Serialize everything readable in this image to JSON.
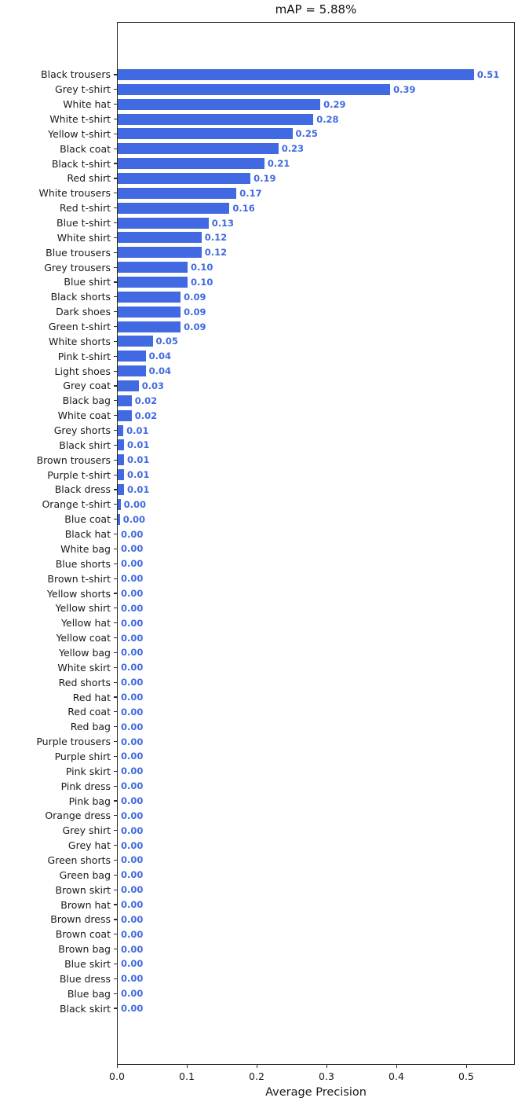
{
  "title": "mAP = 5.88%",
  "xlabel": "Average Precision",
  "accent_color": "#4169E1",
  "chart_data": {
    "type": "bar",
    "orientation": "horizontal",
    "title": "mAP = 5.88%",
    "xlabel": "Average Precision",
    "ylabel": "",
    "grid": false,
    "legend": "none",
    "xlim": [
      0,
      0.568
    ],
    "x_tick_values": [
      0.0,
      0.1,
      0.2,
      0.3,
      0.4,
      0.5
    ],
    "x_tick_labels": [
      "0.0",
      "0.1",
      "0.2",
      "0.3",
      "0.4",
      "0.5"
    ],
    "bar_color": "#4169E1",
    "value_label_color": "#4169E1",
    "categories": [
      "Black trousers",
      "Grey t-shirt",
      "White hat",
      "White t-shirt",
      "Yellow t-shirt",
      "Black coat",
      "Black t-shirt",
      "Red shirt",
      "White trousers",
      "Red t-shirt",
      "Blue t-shirt",
      "White shirt",
      "Blue trousers",
      "Grey trousers",
      "Blue shirt",
      "Black shorts",
      "Dark shoes",
      "Green t-shirt",
      "White shorts",
      "Pink t-shirt",
      "Light shoes",
      "Grey coat",
      "Black bag",
      "White coat",
      "Grey shorts",
      "Black shirt",
      "Brown trousers",
      "Purple t-shirt",
      "Black dress",
      "Orange t-shirt",
      "Blue coat",
      "Black hat",
      "White bag",
      "Blue shorts",
      "Brown t-shirt",
      "Yellow shorts",
      "Yellow shirt",
      "Yellow hat",
      "Yellow coat",
      "Yellow bag",
      "White skirt",
      "Red shorts",
      "Red hat",
      "Red coat",
      "Red bag",
      "Purple trousers",
      "Purple shirt",
      "Pink skirt",
      "Pink dress",
      "Pink bag",
      "Orange dress",
      "Grey shirt",
      "Grey hat",
      "Green shorts",
      "Green bag",
      "Brown skirt",
      "Brown hat",
      "Brown dress",
      "Brown coat",
      "Brown bag",
      "Blue skirt",
      "Blue dress",
      "Blue bag",
      "Black skirt"
    ],
    "values": [
      0.51,
      0.39,
      0.29,
      0.28,
      0.25,
      0.23,
      0.21,
      0.19,
      0.17,
      0.16,
      0.13,
      0.12,
      0.12,
      0.1,
      0.1,
      0.09,
      0.09,
      0.09,
      0.05,
      0.04,
      0.04,
      0.03,
      0.02,
      0.02,
      0.01,
      0.01,
      0.01,
      0.01,
      0.01,
      0.0,
      0.0,
      0.0,
      0.0,
      0.0,
      0.0,
      0.0,
      0.0,
      0.0,
      0.0,
      0.0,
      0.0,
      0.0,
      0.0,
      0.0,
      0.0,
      0.0,
      0.0,
      0.0,
      0.0,
      0.0,
      0.0,
      0.0,
      0.0,
      0.0,
      0.0,
      0.0,
      0.0,
      0.0,
      0.0,
      0.0,
      0.0,
      0.0,
      0.0,
      0.0
    ],
    "value_labels": [
      "0.51",
      "0.39",
      "0.29",
      "0.28",
      "0.25",
      "0.23",
      "0.21",
      "0.19",
      "0.17",
      "0.16",
      "0.13",
      "0.12",
      "0.12",
      "0.10",
      "0.10",
      "0.09",
      "0.09",
      "0.09",
      "0.05",
      "0.04",
      "0.04",
      "0.03",
      "0.02",
      "0.02",
      "0.01",
      "0.01",
      "0.01",
      "0.01",
      "0.01",
      "0.00",
      "0.00",
      "0.00",
      "0.00",
      "0.00",
      "0.00",
      "0.00",
      "0.00",
      "0.00",
      "0.00",
      "0.00",
      "0.00",
      "0.00",
      "0.00",
      "0.00",
      "0.00",
      "0.00",
      "0.00",
      "0.00",
      "0.00",
      "0.00",
      "0.00",
      "0.00",
      "0.00",
      "0.00",
      "0.00",
      "0.00",
      "0.00",
      "0.00",
      "0.00",
      "0.00",
      "0.00",
      "0.00",
      "0.00",
      "0.00"
    ],
    "bar_render_values": [
      0.51,
      0.39,
      0.29,
      0.28,
      0.25,
      0.23,
      0.21,
      0.19,
      0.17,
      0.16,
      0.13,
      0.12,
      0.12,
      0.1,
      0.1,
      0.09,
      0.09,
      0.09,
      0.05,
      0.04,
      0.04,
      0.03,
      0.02,
      0.02,
      0.008,
      0.009,
      0.009,
      0.009,
      0.009,
      0.004,
      0.003,
      0,
      0,
      0,
      0,
      0,
      0,
      0,
      0,
      0,
      0,
      0,
      0,
      0,
      0,
      0,
      0,
      0,
      0,
      0,
      0,
      0,
      0,
      0,
      0,
      0,
      0,
      0,
      0,
      0,
      0,
      0,
      0,
      0
    ]
  }
}
